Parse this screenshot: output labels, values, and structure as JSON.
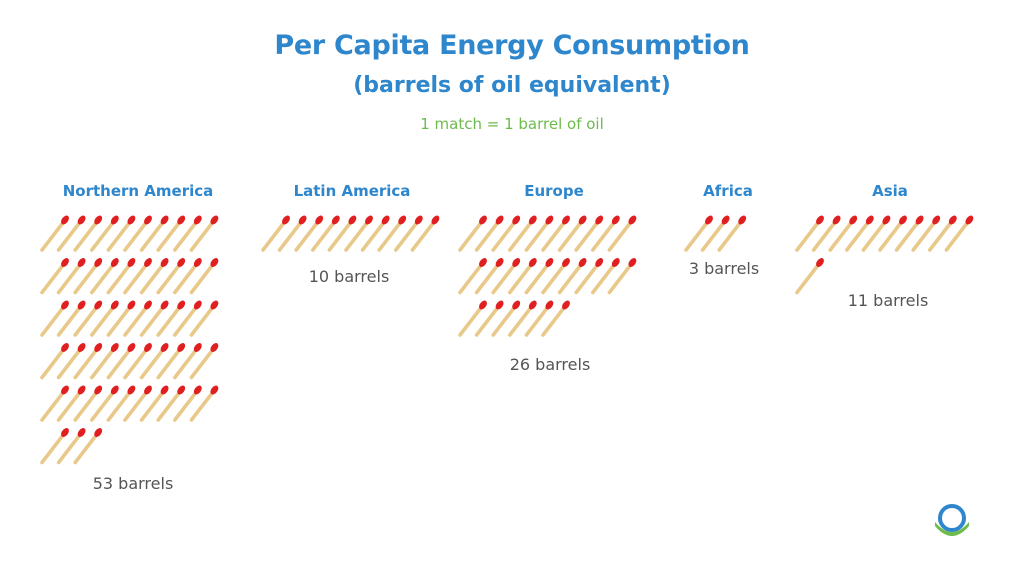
{
  "chart_data": {
    "type": "pictograph",
    "title": "Per Capita Energy Consumption",
    "subtitle": "(barrels of oil equivalent)",
    "legend": "1 match = 1 barrel of oil",
    "categories": [
      "Northern America",
      "Latin America",
      "Europe",
      "Africa",
      "Asia"
    ],
    "values": [
      53,
      10,
      26,
      3,
      11
    ],
    "value_labels": [
      "53 barrels",
      "10 barrels",
      "26 barrels",
      "3 barrels",
      "11 barrels"
    ],
    "icons_per_row": 10,
    "icon": "match-icon",
    "colors": {
      "title": "#2e86cc",
      "legend": "#6dbb4d",
      "match_stick": "#e8c98a",
      "match_head": "#e02020"
    }
  },
  "logo": {
    "icon": "globe-logo-icon",
    "colors": [
      "#2e86cc",
      "#6dbb4d"
    ]
  }
}
